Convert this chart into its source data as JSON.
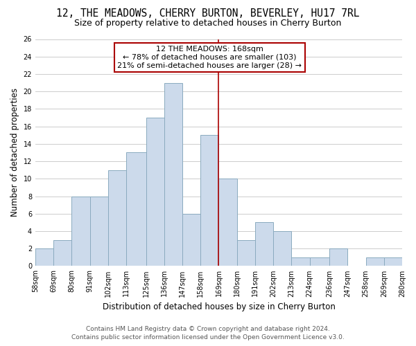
{
  "title": "12, THE MEADOWS, CHERRY BURTON, BEVERLEY, HU17 7RL",
  "subtitle": "Size of property relative to detached houses in Cherry Burton",
  "xlabel": "Distribution of detached houses by size in Cherry Burton",
  "ylabel": "Number of detached properties",
  "bin_labels": [
    "58sqm",
    "69sqm",
    "80sqm",
    "91sqm",
    "102sqm",
    "113sqm",
    "125sqm",
    "136sqm",
    "147sqm",
    "158sqm",
    "169sqm",
    "180sqm",
    "191sqm",
    "202sqm",
    "213sqm",
    "224sqm",
    "236sqm",
    "247sqm",
    "258sqm",
    "269sqm",
    "280sqm"
  ],
  "bin_edges": [
    58,
    69,
    80,
    91,
    102,
    113,
    125,
    136,
    147,
    158,
    169,
    180,
    191,
    202,
    213,
    224,
    236,
    247,
    258,
    269,
    280
  ],
  "counts": [
    2,
    3,
    8,
    8,
    11,
    13,
    17,
    21,
    6,
    15,
    10,
    3,
    5,
    4,
    1,
    1,
    2,
    0,
    1,
    1
  ],
  "bar_color": "#ccdaeb",
  "bar_edge_color": "#8aaabf",
  "property_line_x": 169,
  "property_line_color": "#aa0000",
  "annotation_line1": "12 THE MEADOWS: 168sqm",
  "annotation_line2": "← 78% of detached houses are smaller (103)",
  "annotation_line3": "21% of semi-detached houses are larger (28) →",
  "annotation_box_color": "#ffffff",
  "annotation_box_edge": "#aa0000",
  "ylim": [
    0,
    26
  ],
  "yticks": [
    0,
    2,
    4,
    6,
    8,
    10,
    12,
    14,
    16,
    18,
    20,
    22,
    24,
    26
  ],
  "footer_line1": "Contains HM Land Registry data © Crown copyright and database right 2024.",
  "footer_line2": "Contains public sector information licensed under the Open Government Licence v3.0.",
  "bg_color": "#ffffff",
  "grid_color": "#cccccc",
  "title_fontsize": 10.5,
  "subtitle_fontsize": 9,
  "axis_label_fontsize": 8.5,
  "tick_fontsize": 7,
  "annotation_fontsize": 8,
  "footer_fontsize": 6.5
}
